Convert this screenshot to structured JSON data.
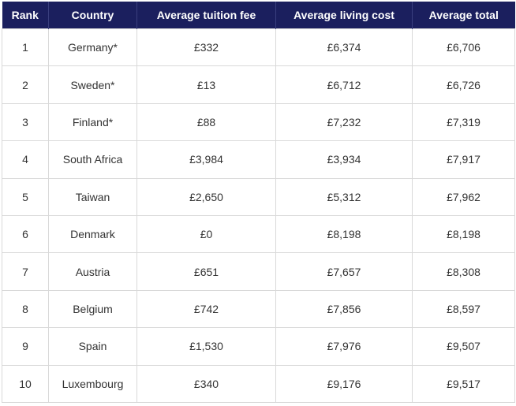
{
  "table": {
    "headers": [
      "Rank",
      "Country",
      "Average tuition fee",
      "Average living cost",
      "Average total"
    ],
    "rows": [
      [
        "1",
        "Germany*",
        "£332",
        "£6,374",
        "£6,706"
      ],
      [
        "2",
        "Sweden*",
        "£13",
        "£6,712",
        "£6,726"
      ],
      [
        "3",
        "Finland*",
        "£88",
        "£7,232",
        "£7,319"
      ],
      [
        "4",
        "South Africa",
        "£3,984",
        "£3,934",
        "£7,917"
      ],
      [
        "5",
        "Taiwan",
        "£2,650",
        "£5,312",
        "£7,962"
      ],
      [
        "6",
        "Denmark",
        "£0",
        "£8,198",
        "£8,198"
      ],
      [
        "7",
        "Austria",
        "£651",
        "£7,657",
        "£8,308"
      ],
      [
        "8",
        "Belgium",
        "£742",
        "£7,856",
        "£8,597"
      ],
      [
        "9",
        "Spain",
        "£1,530",
        "£7,976",
        "£9,507"
      ],
      [
        "10",
        "Luxembourg",
        "£340",
        "£9,176",
        "£9,517"
      ]
    ]
  },
  "colors": {
    "header_bg": "#1b1f5e",
    "header_text": "#ffffff",
    "cell_text": "#333333",
    "grid": "#d9d9d9"
  }
}
